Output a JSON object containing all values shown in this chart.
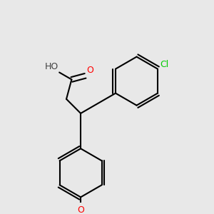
{
  "background_color": "#e8e8e8",
  "bond_color": "#000000",
  "atom_colors": {
    "O": "#ff0000",
    "Cl": "#00cc00",
    "H": "#404040",
    "C": "#000000"
  },
  "figsize": [
    3.0,
    3.0
  ],
  "dpi": 100
}
